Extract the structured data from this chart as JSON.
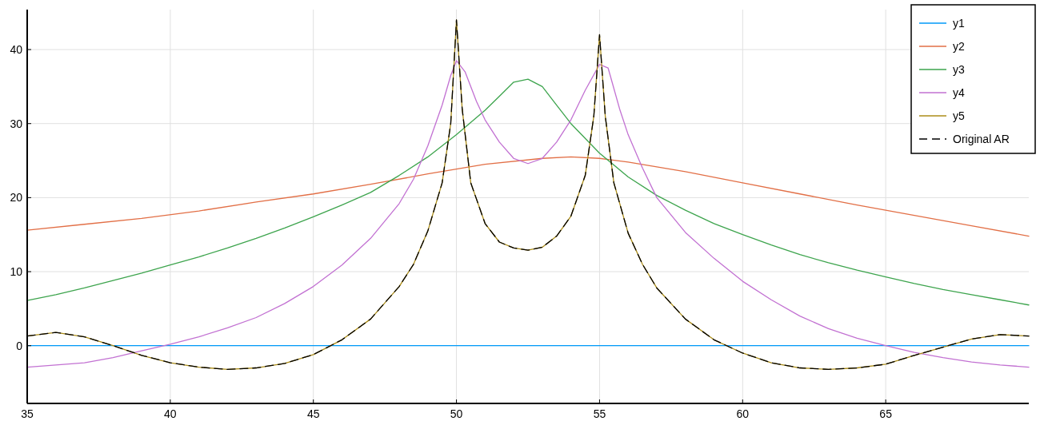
{
  "chart_data": {
    "type": "line",
    "xlim": [
      35,
      70
    ],
    "ylim": [
      -7.8,
      45.4
    ],
    "xticks": [
      35,
      40,
      45,
      50,
      55,
      60,
      65
    ],
    "yticks": [
      0,
      10,
      20,
      30,
      40
    ],
    "grid": true,
    "legend": "top right",
    "series": [
      {
        "name": "y1",
        "color": "#009af9",
        "x": [
          35,
          70
        ],
        "values": [
          0,
          0
        ]
      },
      {
        "name": "y2",
        "color": "#e26f46",
        "x": [
          35,
          37,
          39,
          41,
          43,
          45,
          47,
          49,
          51,
          53,
          54,
          55,
          56,
          58,
          60,
          62,
          64,
          66,
          68,
          70
        ],
        "values": [
          15.6,
          16.4,
          17.2,
          18.2,
          19.4,
          20.5,
          21.8,
          23.2,
          24.5,
          25.3,
          25.5,
          25.3,
          24.8,
          23.5,
          22.0,
          20.5,
          19.0,
          17.6,
          16.2,
          14.8
        ]
      },
      {
        "name": "y3",
        "color": "#3da44d",
        "x": [
          35,
          36,
          37,
          38,
          39,
          40,
          41,
          42,
          43,
          44,
          45,
          46,
          47,
          48,
          49,
          50,
          51,
          51.5,
          52,
          52.5,
          53,
          53.5,
          54,
          55,
          56,
          57,
          58,
          59,
          60,
          61,
          62,
          63,
          64,
          65,
          66,
          67,
          68,
          69,
          70
        ],
        "values": [
          6.1,
          6.9,
          7.8,
          8.8,
          9.8,
          10.9,
          12.0,
          13.2,
          14.5,
          15.9,
          17.4,
          19.0,
          20.7,
          23.0,
          25.5,
          28.5,
          31.8,
          33.7,
          35.6,
          36,
          35,
          32.5,
          30,
          26,
          22.8,
          20.3,
          18.3,
          16.5,
          15.0,
          13.6,
          12.3,
          11.2,
          10.2,
          9.3,
          8.4,
          7.6,
          6.9,
          6.2,
          5.5
        ]
      },
      {
        "name": "y4",
        "color": "#c271d2",
        "x": [
          35,
          37,
          38,
          39,
          40,
          41,
          42,
          43,
          44,
          45,
          46,
          47,
          48,
          48.5,
          49,
          49.5,
          49.8,
          50,
          50.3,
          50.7,
          51,
          51.5,
          52,
          52.5,
          53,
          53.5,
          54,
          54.5,
          55,
          55.3,
          55.7,
          56,
          56.5,
          57,
          58,
          59,
          60,
          61,
          62,
          63,
          64,
          65,
          66,
          67,
          68,
          69,
          70
        ],
        "values": [
          -2.9,
          -2.3,
          -1.6,
          -0.7,
          0.2,
          1.2,
          2.4,
          3.8,
          5.7,
          8.0,
          10.9,
          14.5,
          19.2,
          22.5,
          27,
          32.5,
          36.5,
          38.5,
          37,
          33,
          30.5,
          27.5,
          25.3,
          24.6,
          25.3,
          27.5,
          30.5,
          34.5,
          38,
          37.5,
          32,
          28.5,
          24,
          20,
          15.3,
          11.8,
          8.7,
          6.2,
          4.0,
          2.3,
          1.0,
          0,
          -0.9,
          -1.6,
          -2.2,
          -2.6,
          -2.9
        ]
      },
      {
        "name": "y5",
        "color": "#ac8d18",
        "x": [
          35,
          36,
          37,
          38,
          39,
          40,
          41,
          42,
          43,
          44,
          45,
          46,
          47,
          48,
          48.5,
          49,
          49.5,
          49.8,
          50,
          50.2,
          50.5,
          51,
          51.5,
          52,
          52.5,
          53,
          53.5,
          54,
          54.5,
          54.8,
          55,
          55.2,
          55.5,
          56,
          56.5,
          57,
          58,
          59,
          60,
          61,
          62,
          63,
          64,
          65,
          66,
          67,
          68,
          69,
          70
        ],
        "values": [
          1.3,
          1.8,
          1.2,
          0.0,
          -1.3,
          -2.3,
          -2.9,
          -3.2,
          -3.0,
          -2.4,
          -1.2,
          0.8,
          3.6,
          8.0,
          11,
          15.5,
          22,
          30,
          44,
          32,
          22,
          16.5,
          14,
          13.2,
          12.9,
          13.3,
          14.8,
          17.5,
          23,
          31,
          42,
          31,
          22,
          15.2,
          11,
          7.8,
          3.6,
          0.8,
          -1.0,
          -2.3,
          -3.0,
          -3.2,
          -3.0,
          -2.5,
          -1.3,
          -0.2,
          0.9,
          1.5,
          1.3
        ]
      },
      {
        "name": "Original AR",
        "color": "#000000",
        "line_style": "dashed",
        "x": [
          35,
          36,
          37,
          38,
          39,
          40,
          41,
          42,
          43,
          44,
          45,
          46,
          47,
          48,
          48.5,
          49,
          49.5,
          49.8,
          50,
          50.2,
          50.5,
          51,
          51.5,
          52,
          52.5,
          53,
          53.5,
          54,
          54.5,
          54.8,
          55,
          55.2,
          55.5,
          56,
          56.5,
          57,
          58,
          59,
          60,
          61,
          62,
          63,
          64,
          65,
          66,
          67,
          68,
          69,
          70
        ],
        "values": [
          1.3,
          1.8,
          1.2,
          0.0,
          -1.3,
          -2.3,
          -2.9,
          -3.2,
          -3.0,
          -2.4,
          -1.2,
          0.8,
          3.6,
          8.0,
          11,
          15.5,
          22,
          30,
          44,
          32,
          22,
          16.5,
          14,
          13.2,
          12.9,
          13.3,
          14.8,
          17.5,
          23,
          31,
          42,
          31,
          22,
          15.2,
          11,
          7.8,
          3.6,
          0.8,
          -1.0,
          -2.3,
          -3.0,
          -3.2,
          -3.0,
          -2.5,
          -1.3,
          -0.2,
          0.9,
          1.5,
          1.3
        ]
      }
    ]
  }
}
